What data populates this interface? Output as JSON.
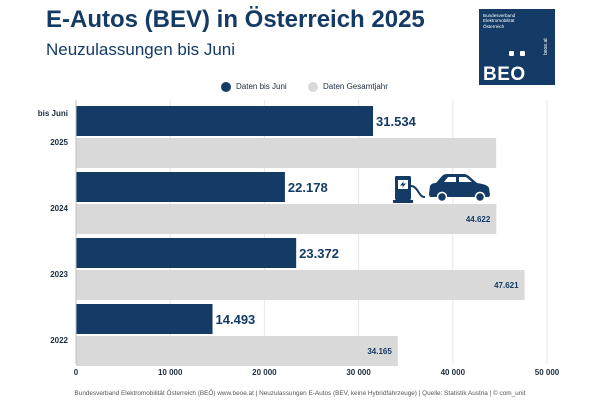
{
  "header": {
    "title": "E-Autos (BEV) in Österreich 2025",
    "subtitle": "Neuzulassungen bis Juni"
  },
  "logo": {
    "small_text": "Bundesverband\nElektromobilität\nÖsterreich",
    "name": "BEO",
    "url": "beoe.at",
    "color": "#143b66"
  },
  "footer": {
    "text": "Bundesverband Elektromobilität Österreich (BEÖ) www.beoe.at | Neuzulassungen E-Autos (BEV, keine Hybridfahrzeuge) | Quelle: Statistik Austria | © com_unit"
  },
  "decoration": {
    "icons": [
      "charging-station-icon",
      "car-icon"
    ]
  },
  "chart_data": {
    "type": "bar",
    "orientation": "horizontal",
    "categories": [
      "2025",
      "2024",
      "2023",
      "2022"
    ],
    "category_note": "bis Juni",
    "series": [
      {
        "name": "Daten bis Juni",
        "color": "#143b66",
        "values": [
          31534,
          22178,
          23372,
          14493
        ],
        "labels": [
          "31.534",
          "22.178",
          "23.372",
          "14.493"
        ]
      },
      {
        "name": "Daten Gesamtjahr",
        "color": "#d9d9d9",
        "values": [
          44600,
          44622,
          47621,
          34165
        ],
        "labels": [
          "",
          "44.622",
          "47.621",
          "34.165"
        ]
      }
    ],
    "xlim": [
      0,
      50000
    ],
    "xticks": [
      0,
      10000,
      20000,
      30000,
      40000,
      50000
    ],
    "xtick_labels": [
      "0",
      "10 000",
      "20 000",
      "30 000",
      "40 000",
      "50 000"
    ],
    "grid": true,
    "legend": "top-center"
  }
}
